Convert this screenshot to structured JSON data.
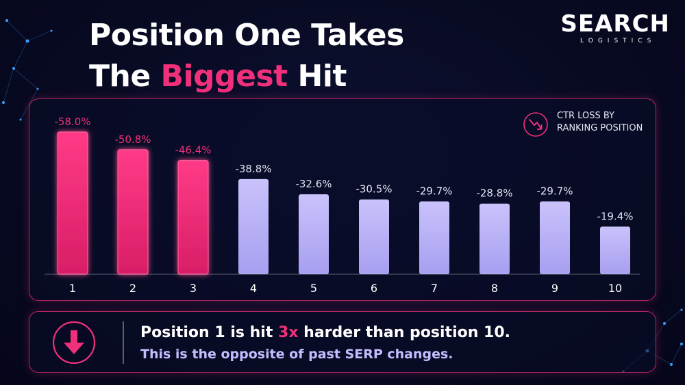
{
  "title": {
    "line1": "Position One Takes",
    "line2_prefix": "The ",
    "line2_highlight": "Biggest",
    "line2_suffix": " Hit"
  },
  "brand": {
    "name": "SEARCH",
    "tagline": "LOGISTICS"
  },
  "chart_data": {
    "type": "bar",
    "title": "CTR LOSS BY RANKING POSITION",
    "categories": [
      "1",
      "2",
      "3",
      "4",
      "5",
      "6",
      "7",
      "8",
      "9",
      "10"
    ],
    "values": [
      -58.0,
      -50.8,
      -46.4,
      -38.8,
      -32.6,
      -30.5,
      -29.7,
      -28.8,
      -29.7,
      -19.4
    ],
    "data_labels": [
      "-58.0%",
      "-50.8%",
      "-46.4%",
      "-38.8%",
      "-32.6%",
      "-30.5%",
      "-29.7%",
      "-28.8%",
      "-29.7%",
      "-19.4%"
    ],
    "highlight_count": 3,
    "colors": {
      "highlight": "#f0307a",
      "normal": "#bdb6f5"
    },
    "grid": false,
    "legend": "top-right"
  },
  "legend": {
    "line1": "CTR LOSS BY",
    "line2": "RANKING POSITION"
  },
  "callout": {
    "line1_prefix": "Position 1 is hit ",
    "line1_highlight": "3x",
    "line1_suffix": " harder than position 10.",
    "line2": "This is the opposite of past SERP changes."
  },
  "icons": {
    "legend": "trend-down-icon",
    "callout": "arrow-down-circle-icon"
  }
}
